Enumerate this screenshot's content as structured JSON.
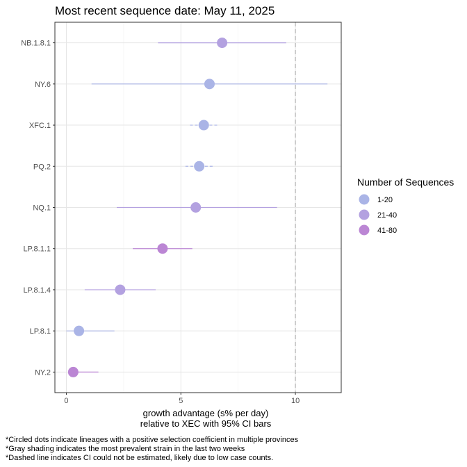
{
  "chart_data": {
    "type": "scatter",
    "title": "Most recent sequence date: May 11, 2025",
    "xlabel_line1": "growth advantage (s% per day)",
    "xlabel_line2": "relative to  XEC  with 95% CI bars",
    "xlim": [
      -0.5,
      12
    ],
    "xticks": [
      0,
      5,
      10
    ],
    "reference_line_x": 10,
    "grid": true,
    "legend": {
      "title": "Number of Sequences",
      "position": "right",
      "entries": [
        {
          "label": "1-20",
          "color": "#aab4e6"
        },
        {
          "label": "21-40",
          "color": "#b3a1e0"
        },
        {
          "label": "41-80",
          "color": "#bb86d4"
        }
      ]
    },
    "lineages": [
      {
        "name": "NB.1.8.1",
        "value": 6.8,
        "ci": [
          4.0,
          9.6
        ],
        "group": "21-40",
        "dashed": false
      },
      {
        "name": "NY.6",
        "value": 6.25,
        "ci": [
          1.1,
          11.4
        ],
        "group": "1-20",
        "dashed": false
      },
      {
        "name": "XFC.1",
        "value": 6.0,
        "ci": [
          5.4,
          6.6
        ],
        "group": "1-20",
        "dashed": true
      },
      {
        "name": "PQ.2",
        "value": 5.8,
        "ci": [
          5.2,
          6.4
        ],
        "group": "1-20",
        "dashed": true
      },
      {
        "name": "NQ.1",
        "value": 5.65,
        "ci": [
          2.2,
          9.2
        ],
        "group": "21-40",
        "dashed": false
      },
      {
        "name": "LP.8.1.1",
        "value": 4.2,
        "ci": [
          2.9,
          5.5
        ],
        "group": "41-80",
        "dashed": false
      },
      {
        "name": "LP.8.1.4",
        "value": 2.35,
        "ci": [
          0.8,
          3.9
        ],
        "group": "21-40",
        "dashed": false
      },
      {
        "name": "LP.8.1",
        "value": 0.55,
        "ci": [
          0.0,
          2.1
        ],
        "group": "1-20",
        "dashed": false
      },
      {
        "name": "NY.2",
        "value": 0.3,
        "ci": [
          0.2,
          1.4
        ],
        "group": "41-80",
        "dashed": false
      }
    ]
  },
  "footnotes": [
    "*Circled dots indicate lineages with a positive selection coefficient in multiple provinces",
    "*Gray shading indicates the most prevalent strain in the last two weeks",
    "*Dashed line indicates CI could not be estimated, likely due to low case counts."
  ]
}
